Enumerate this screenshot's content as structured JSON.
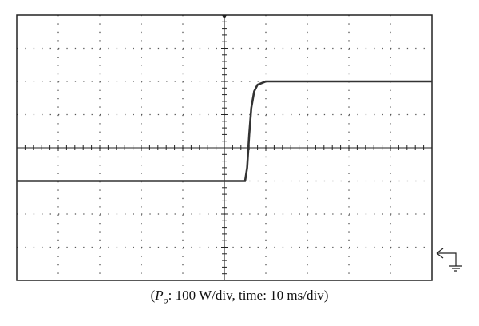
{
  "chart_data": {
    "type": "line",
    "title": "",
    "xlabel": "",
    "ylabel": "",
    "divisions": {
      "x": 10,
      "y": 8
    },
    "xlim_div": [
      0,
      10
    ],
    "ylim_div": [
      -4,
      4
    ],
    "grid": true,
    "grid_style": "dotted",
    "series": [
      {
        "x_div": [
          0,
          5.5,
          5.55,
          5.6,
          5.65,
          5.72,
          5.8,
          6.0,
          6.3,
          10
        ],
        "y_div": [
          -1.0,
          -1.0,
          -0.6,
          0.4,
          1.2,
          1.7,
          1.9,
          2.0,
          2.0,
          2.0
        ],
        "color": "#333333"
      }
    ],
    "ground_marker": "ground-symbol"
  },
  "caption": {
    "open": "(",
    "symbol": "P",
    "subscript": "o",
    "text": ": 100 W/div, time: 10 ms/div)"
  }
}
